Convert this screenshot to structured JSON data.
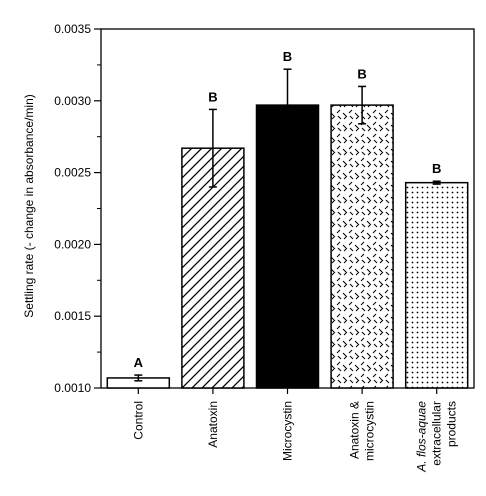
{
  "chart_data": {
    "type": "bar",
    "ylabel": "Settling rate (- change in absorbance/min)",
    "ylim": [
      0.001,
      0.0035
    ],
    "yticks": [
      "0.0010",
      "0.0015",
      "0.0020",
      "0.0025",
      "0.0030",
      "0.0035"
    ],
    "ytick_values": [
      0.001,
      0.0015,
      0.002,
      0.0025,
      0.003,
      0.0035
    ],
    "grid": false,
    "categories": [
      {
        "lines": [
          {
            "text": "Control",
            "italic": false
          }
        ]
      },
      {
        "lines": [
          {
            "text": "Anatoxin",
            "italic": false
          }
        ]
      },
      {
        "lines": [
          {
            "text": "Microcystin",
            "italic": false
          }
        ]
      },
      {
        "lines": [
          {
            "text": "Anatoxin &",
            "italic": false
          },
          {
            "text": "microcystin",
            "italic": false
          }
        ]
      },
      {
        "lines": [
          {
            "text": "A. flos-aquae",
            "italic": true
          },
          {
            "text": "extracellular",
            "italic": false
          },
          {
            "text": "products",
            "italic": false
          }
        ]
      }
    ],
    "values": [
      0.00107,
      0.00267,
      0.00297,
      0.00297,
      0.00243
    ],
    "errors": [
      2e-05,
      0.00027,
      0.00025,
      0.00013,
      1e-05
    ],
    "significance": [
      "A",
      "B",
      "B",
      "B",
      "B"
    ],
    "fills": [
      "white",
      "diagonal",
      "solid",
      "dashes",
      "dots"
    ]
  }
}
